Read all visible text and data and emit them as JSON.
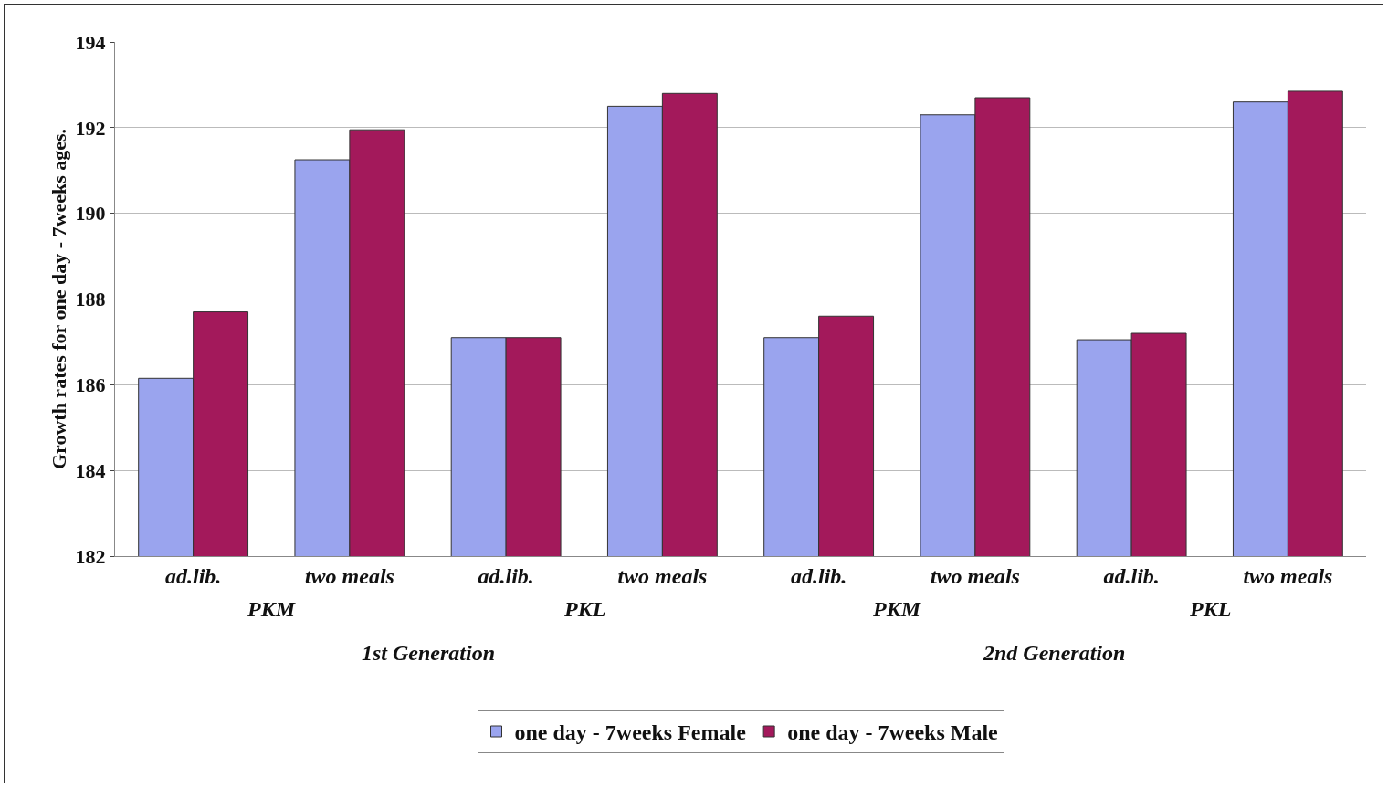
{
  "chart_data": {
    "type": "bar",
    "ylabel": "Growth rates for one day - 7weeks ages.",
    "categories": [
      "ad.lib.",
      "two meals",
      "ad.lib.",
      "two meals",
      "ad.lib.",
      "two meals",
      "ad.lib.",
      "two meals"
    ],
    "series": [
      {
        "name": "one day - 7weeks Female",
        "color": "#9aa4ee",
        "values": [
          186.15,
          191.25,
          187.1,
          192.5,
          187.1,
          192.3,
          187.05,
          192.6
        ]
      },
      {
        "name": "one day - 7weeks Male",
        "color": "#a3195b",
        "values": [
          187.7,
          191.95,
          187.1,
          192.8,
          187.6,
          192.7,
          187.2,
          192.85
        ]
      }
    ],
    "annotations": [
      "PKM",
      "PKL",
      "PKM",
      "PKL",
      "1st Generation",
      "2nd Generation"
    ],
    "ylim": [
      182,
      194
    ],
    "yticks": [
      182,
      184,
      186,
      188,
      190,
      192,
      194
    ],
    "grid": "y",
    "legend": "bottom"
  }
}
